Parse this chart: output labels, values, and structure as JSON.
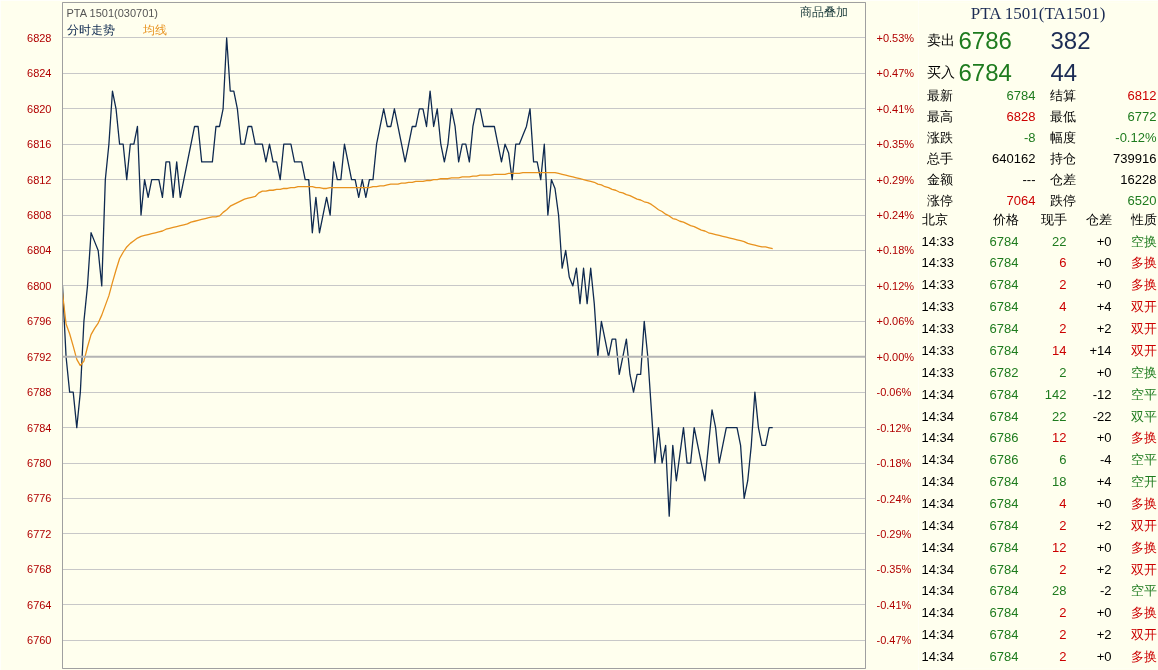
{
  "chart_data": [
    {
      "type": "line",
      "title": "PTA 1501(030701)",
      "annotations": [
        "商品叠加"
      ],
      "categories": [
        null,
        null,
        null,
        null,
        null,
        null,
        null,
        null,
        null,
        null,
        null,
        null,
        null,
        null,
        null,
        null,
        null,
        null,
        null,
        null,
        null,
        null,
        null,
        null,
        null,
        null,
        null,
        null,
        null,
        null,
        null,
        null,
        null,
        null,
        null,
        null,
        null,
        null,
        null,
        null,
        null,
        null,
        null,
        null,
        null,
        null,
        null,
        null,
        null,
        null,
        null,
        null,
        null,
        null,
        null,
        null,
        null,
        null,
        null,
        null,
        null,
        null,
        null,
        null,
        null,
        null,
        null,
        null,
        null,
        null,
        null,
        null,
        null,
        null,
        null,
        null,
        null,
        null,
        null,
        null,
        null,
        null,
        null,
        null,
        null,
        null,
        null,
        null,
        null,
        null,
        null,
        null,
        null,
        null,
        null,
        null,
        null,
        null,
        null,
        null,
        null,
        null,
        null,
        null,
        null,
        null,
        null,
        null,
        null,
        null,
        null,
        null,
        null,
        null,
        null,
        null,
        null,
        null,
        null,
        null,
        null,
        null,
        null,
        null,
        null,
        null,
        null,
        null,
        null,
        null,
        null,
        null,
        null,
        null,
        null,
        null,
        null,
        null,
        null,
        null,
        null,
        null,
        null,
        null,
        null,
        null,
        null,
        null,
        null,
        null,
        null,
        null,
        null,
        null,
        null,
        null,
        null,
        null,
        null,
        null,
        null,
        null,
        null,
        null,
        null,
        null,
        null,
        null,
        null,
        null,
        null,
        null,
        null,
        null,
        null,
        null,
        null,
        null,
        null,
        null,
        null,
        null,
        null,
        null,
        null,
        null,
        null,
        null,
        null,
        null,
        null,
        null,
        null,
        null,
        null,
        null,
        null,
        null,
        null,
        null,
        null,
        null,
        null,
        null,
        null,
        null,
        null,
        null,
        null,
        null,
        null,
        null,
        null,
        null,
        null,
        null,
        null,
        null,
        null,
        null,
        null,
        null,
        null,
        null,
        null,
        null
      ],
      "ylim": [
        6756.8,
        6832
      ],
      "yticks": [
        6760,
        6764,
        6768,
        6772,
        6776,
        6780,
        6784,
        6788,
        6792,
        6796,
        6800,
        6804,
        6808,
        6812,
        6816,
        6820,
        6824,
        6828
      ],
      "y2lim": [
        -0.518,
        0.589
      ],
      "y2ticks": [
        {
          "value": -0.471,
          "label": "-0.47%"
        },
        {
          "value": -0.412,
          "label": "-0.41%"
        },
        {
          "value": -0.353,
          "label": "-0.35%"
        },
        {
          "value": -0.294,
          "label": "-0.29%"
        },
        {
          "value": -0.236,
          "label": "-0.24%"
        },
        {
          "value": -0.177,
          "label": "-0.18%"
        },
        {
          "value": -0.118,
          "label": "-0.12%"
        },
        {
          "value": -0.059,
          "label": "-0.06%"
        },
        {
          "value": 0,
          "label": "+0.00%"
        },
        {
          "value": 0.059,
          "label": "+0.06%"
        },
        {
          "value": 0.118,
          "label": "+0.12%"
        },
        {
          "value": 0.177,
          "label": "+0.18%"
        },
        {
          "value": 0.236,
          "label": "+0.24%"
        },
        {
          "value": 0.294,
          "label": "+0.29%"
        },
        {
          "value": 0.353,
          "label": "+0.35%"
        },
        {
          "value": 0.412,
          "label": "+0.41%"
        },
        {
          "value": 0.471,
          "label": "+0.47%"
        },
        {
          "value": 0.53,
          "label": "+0.53%"
        }
      ],
      "tick_labels": "y",
      "grid": "y",
      "line_style": "solid",
      "ref_lines": [
        {
          "axis": "y",
          "value": 6792,
          "color": "#b4b4b4"
        }
      ],
      "series": [
        {
          "name": "分时走势",
          "color": "#0f2a50",
          "values": [
            6800,
            6792,
            6788,
            6788,
            6784,
            6788,
            6796,
            6800,
            6806,
            6805,
            6804,
            6800,
            6812,
            6816,
            6822,
            6820,
            6816,
            6816,
            6812,
            6816,
            6816,
            6818,
            6808,
            6812,
            6810,
            6812,
            6812,
            6812,
            6810,
            6814,
            6814,
            6810,
            6814,
            6810,
            6812,
            6814,
            6816,
            6818,
            6818,
            6814,
            6814,
            6814,
            6814,
            6818,
            6818,
            6820,
            6828,
            6822,
            6822,
            6820,
            6816,
            6816,
            6818,
            6818,
            6816,
            6816,
            6816,
            6814,
            6816,
            6814,
            6814,
            6812,
            6816,
            6816,
            6816,
            6814,
            6814,
            6814,
            6812,
            6812,
            6806,
            6810,
            6806,
            6808,
            6810,
            6808,
            6814,
            6812,
            6812,
            6816,
            6814,
            6812,
            6812,
            6810,
            6812,
            6810,
            6812,
            6812,
            6816,
            6818,
            6820,
            6818,
            6818,
            6820,
            6818,
            6816,
            6814,
            6816,
            6818,
            6818,
            6820,
            6820,
            6818,
            6822,
            6818,
            6820,
            6816,
            6814,
            6816,
            6820,
            6818,
            6814,
            6816,
            6816,
            6814,
            6818,
            6820,
            6820,
            6818,
            6818,
            6818,
            6818,
            6816,
            6814,
            6816,
            6815,
            6812,
            6816,
            6816,
            6817,
            6818,
            6820,
            6814,
            6814,
            6812,
            6816,
            6808,
            6812,
            6811,
            6808,
            6802,
            6804,
            6801,
            6800,
            6802,
            6798,
            6802,
            6798,
            6802,
            6798,
            6792,
            6796,
            6794,
            6792,
            6794,
            6794,
            6790,
            6792,
            6794,
            6790,
            6788,
            6790,
            6790,
            6796,
            6792,
            6786,
            6780,
            6784,
            6780,
            6782,
            6774,
            6782,
            6778,
            6781,
            6784,
            6780,
            6780,
            6784,
            6782,
            6780,
            6778,
            6782,
            6786,
            6784,
            6780,
            6782,
            6784,
            6784,
            6784,
            6784,
            6782,
            6776,
            6778,
            6782,
            6788,
            6784,
            6782,
            6782,
            6784,
            6784,
            null,
            null,
            null,
            null,
            null,
            null,
            null,
            null,
            null,
            null,
            null,
            null,
            null,
            null,
            null,
            null,
            null,
            null,
            null,
            null,
            null,
            null,
            null,
            null,
            null,
            null
          ]
        },
        {
          "name": "均线",
          "color": "#e8921e",
          "values": [
            6799.2,
            6795.7,
            6794.6,
            6793.2,
            6791.7,
            6791.0,
            6791.5,
            6793.1,
            6794.5,
            6795.2,
            6795.8,
            6796.7,
            6797.8,
            6798.9,
            6800.4,
            6801.8,
            6803.1,
            6803.8,
            6804.4,
            6804.8,
            6805.1,
            6805.4,
            6805.6,
            6805.7,
            6805.8,
            6805.9,
            6806.0,
            6806.1,
            6806.2,
            6806.4,
            6806.5,
            6806.6,
            6806.7,
            6806.8,
            6806.9,
            6807.0,
            6807.2,
            6807.3,
            6807.4,
            6807.5,
            6807.6,
            6807.7,
            6807.8,
            6807.8,
            6807.9,
            6808.3,
            6808.6,
            6809.0,
            6809.2,
            6809.4,
            6809.6,
            6809.8,
            6809.9,
            6810.0,
            6810.1,
            6810.5,
            6810.7,
            6810.7,
            6810.8,
            6810.8,
            6810.9,
            6810.9,
            6811.0,
            6811.0,
            6811.1,
            6811.1,
            6811.2,
            6811.2,
            6811.2,
            6811.2,
            6811.2,
            6811.1,
            6811.1,
            6811.0,
            6811.0,
            6811.1,
            6811.1,
            6811.1,
            6811.1,
            6811.1,
            6811.1,
            6811.1,
            6811.1,
            6811.1,
            6811.1,
            6811.1,
            6811.1,
            6811.2,
            6811.2,
            6811.3,
            6811.3,
            6811.4,
            6811.5,
            6811.5,
            6811.5,
            6811.6,
            6811.6,
            6811.7,
            6811.7,
            6811.8,
            6811.8,
            6811.8,
            6811.9,
            6811.9,
            6812.0,
            6812.0,
            6812.1,
            6812.1,
            6812.1,
            6812.2,
            6812.2,
            6812.2,
            6812.3,
            6812.3,
            6812.3,
            6812.4,
            6812.4,
            6812.5,
            6812.5,
            6812.5,
            6812.5,
            6812.6,
            6812.6,
            6812.6,
            6812.6,
            6812.7,
            6812.7,
            6812.7,
            6812.7,
            6812.8,
            6812.8,
            6812.8,
            6812.8,
            6812.8,
            6812.8,
            6812.8,
            6812.8,
            6812.8,
            6812.8,
            6812.7,
            6812.6,
            6812.5,
            6812.4,
            6812.3,
            6812.2,
            6812.1,
            6812.0,
            6811.9,
            6811.8,
            6811.7,
            6811.5,
            6811.4,
            6811.2,
            6811.1,
            6810.9,
            6810.8,
            6810.6,
            6810.5,
            6810.3,
            6810.2,
            6810.0,
            6809.8,
            6809.7,
            6809.5,
            6809.4,
            6809.2,
            6808.9,
            6808.6,
            6808.4,
            6808.1,
            6807.9,
            6807.6,
            6807.5,
            6807.3,
            6807.2,
            6807.0,
            6806.8,
            6806.7,
            6806.5,
            6806.3,
            6806.2,
            6806.0,
            6805.9,
            6805.8,
            6805.7,
            6805.6,
            6805.5,
            6805.4,
            6805.3,
            6805.2,
            6805.1,
            6805.0,
            6804.8,
            6804.7,
            6804.6,
            6804.5,
            6804.4,
            6804.4,
            6804.3,
            6804.2,
            null,
            null,
            null,
            null,
            null,
            null,
            null,
            null,
            null,
            null,
            null,
            null,
            null,
            null,
            null,
            null,
            null,
            null,
            null,
            null,
            null,
            null,
            null,
            null,
            null,
            null
          ]
        }
      ]
    },
    {
      "type": "other",
      "title": "PTA 1501(TA1501)",
      "annotations": [
        "卖出",
        "6786",
        "382",
        "买入",
        "6784",
        "44",
        "最新",
        "6784",
        "结算",
        "6812",
        "最高",
        "6828",
        "最低",
        "6772",
        "涨跌",
        "-8",
        "幅度",
        "-0.12%",
        "总手",
        "640162",
        "持仓",
        "739916",
        "金额",
        "---",
        "仓差",
        "16228",
        "涨停",
        "7064",
        "跌停",
        "6520",
        "北京",
        "价格",
        "现手",
        "仓差",
        "性质",
        "14:33",
        "6784",
        "22",
        "+0",
        "空换",
        "14:33",
        "6784",
        "6",
        "+0",
        "多换",
        "14:33",
        "6784",
        "2",
        "+0",
        "多换",
        "14:33",
        "6784",
        "4",
        "+4",
        "双开",
        "14:33",
        "6784",
        "2",
        "+2",
        "双开",
        "14:33",
        "6784",
        "14",
        "+14",
        "双开",
        "14:33",
        "6782",
        "2",
        "+0",
        "空换",
        "14:34",
        "6784",
        "142",
        "-12",
        "空平",
        "14:34",
        "6784",
        "22",
        "-22",
        "双平",
        "14:34",
        "6786",
        "12",
        "+0",
        "多换",
        "14:34",
        "6786",
        "6",
        "-4",
        "空平",
        "14:34",
        "6784",
        "18",
        "+4",
        "空开",
        "14:34",
        "6784",
        "4",
        "+0",
        "多换",
        "14:34",
        "6784",
        "2",
        "+2",
        "双开",
        "14:34",
        "6784",
        "12",
        "+0",
        "多换",
        "14:34",
        "6784",
        "2",
        "+2",
        "双开",
        "14:34",
        "6784",
        "28",
        "-2",
        "空平",
        "14:34",
        "6784",
        "2",
        "+0",
        "多换",
        "14:34",
        "6784",
        "2",
        "+2",
        "双开",
        "14:34",
        "6784",
        "2",
        "+0",
        "多换"
      ],
      "colors": [
        "#000000",
        "#1e7b1e",
        "#1c2c54",
        "#000000",
        "#1e7b1e",
        "#1c2c54",
        "#000000",
        "#1e7b1e",
        "#000000",
        "#cc0000",
        "#000000",
        "#cc0000",
        "#000000",
        "#1e7b1e",
        "#000000",
        "#1e7b1e",
        "#000000",
        "#1e7b1e",
        "#000000",
        "#000000",
        "#000000",
        "#000000",
        "#000000",
        "#000000",
        "#000000",
        "#000000",
        "#000000",
        "#cc0000",
        "#000000",
        "#1e7b1e",
        "#000000",
        "#000000",
        "#000000",
        "#000000",
        "#000000",
        "#000000",
        "#1e7b1e",
        "#1e7b1e",
        "#000000",
        "#1e7b1e",
        "#000000",
        "#1e7b1e",
        "#cc0000",
        "#000000",
        "#cc0000",
        "#000000",
        "#1e7b1e",
        "#cc0000",
        "#000000",
        "#cc0000",
        "#000000",
        "#1e7b1e",
        "#cc0000",
        "#000000",
        "#cc0000",
        "#000000",
        "#1e7b1e",
        "#cc0000",
        "#000000",
        "#cc0000",
        "#000000",
        "#1e7b1e",
        "#cc0000",
        "#000000",
        "#cc0000",
        "#000000",
        "#1e7b1e",
        "#1e7b1e",
        "#000000",
        "#1e7b1e",
        "#000000",
        "#1e7b1e",
        "#1e7b1e",
        "#000000",
        "#1e7b1e",
        "#000000",
        "#1e7b1e",
        "#1e7b1e",
        "#000000",
        "#1e7b1e",
        "#000000",
        "#1e7b1e",
        "#cc0000",
        "#000000",
        "#cc0000",
        "#000000",
        "#1e7b1e",
        "#1e7b1e",
        "#000000",
        "#1e7b1e",
        "#000000",
        "#1e7b1e",
        "#1e7b1e",
        "#000000",
        "#1e7b1e",
        "#000000",
        "#1e7b1e",
        "#cc0000",
        "#000000",
        "#cc0000",
        "#000000",
        "#1e7b1e",
        "#cc0000",
        "#000000",
        "#cc0000",
        "#000000",
        "#1e7b1e",
        "#cc0000",
        "#000000",
        "#cc0000",
        "#000000",
        "#1e7b1e",
        "#cc0000",
        "#000000",
        "#cc0000",
        "#000000",
        "#1e7b1e",
        "#1e7b1e",
        "#000000",
        "#1e7b1e",
        "#000000",
        "#1e7b1e",
        "#cc0000",
        "#000000",
        "#cc0000",
        "#000000",
        "#1e7b1e",
        "#cc0000",
        "#000000",
        "#cc0000",
        "#000000",
        "#1e7b1e",
        "#cc0000",
        "#000000",
        "#cc0000"
      ]
    }
  ]
}
